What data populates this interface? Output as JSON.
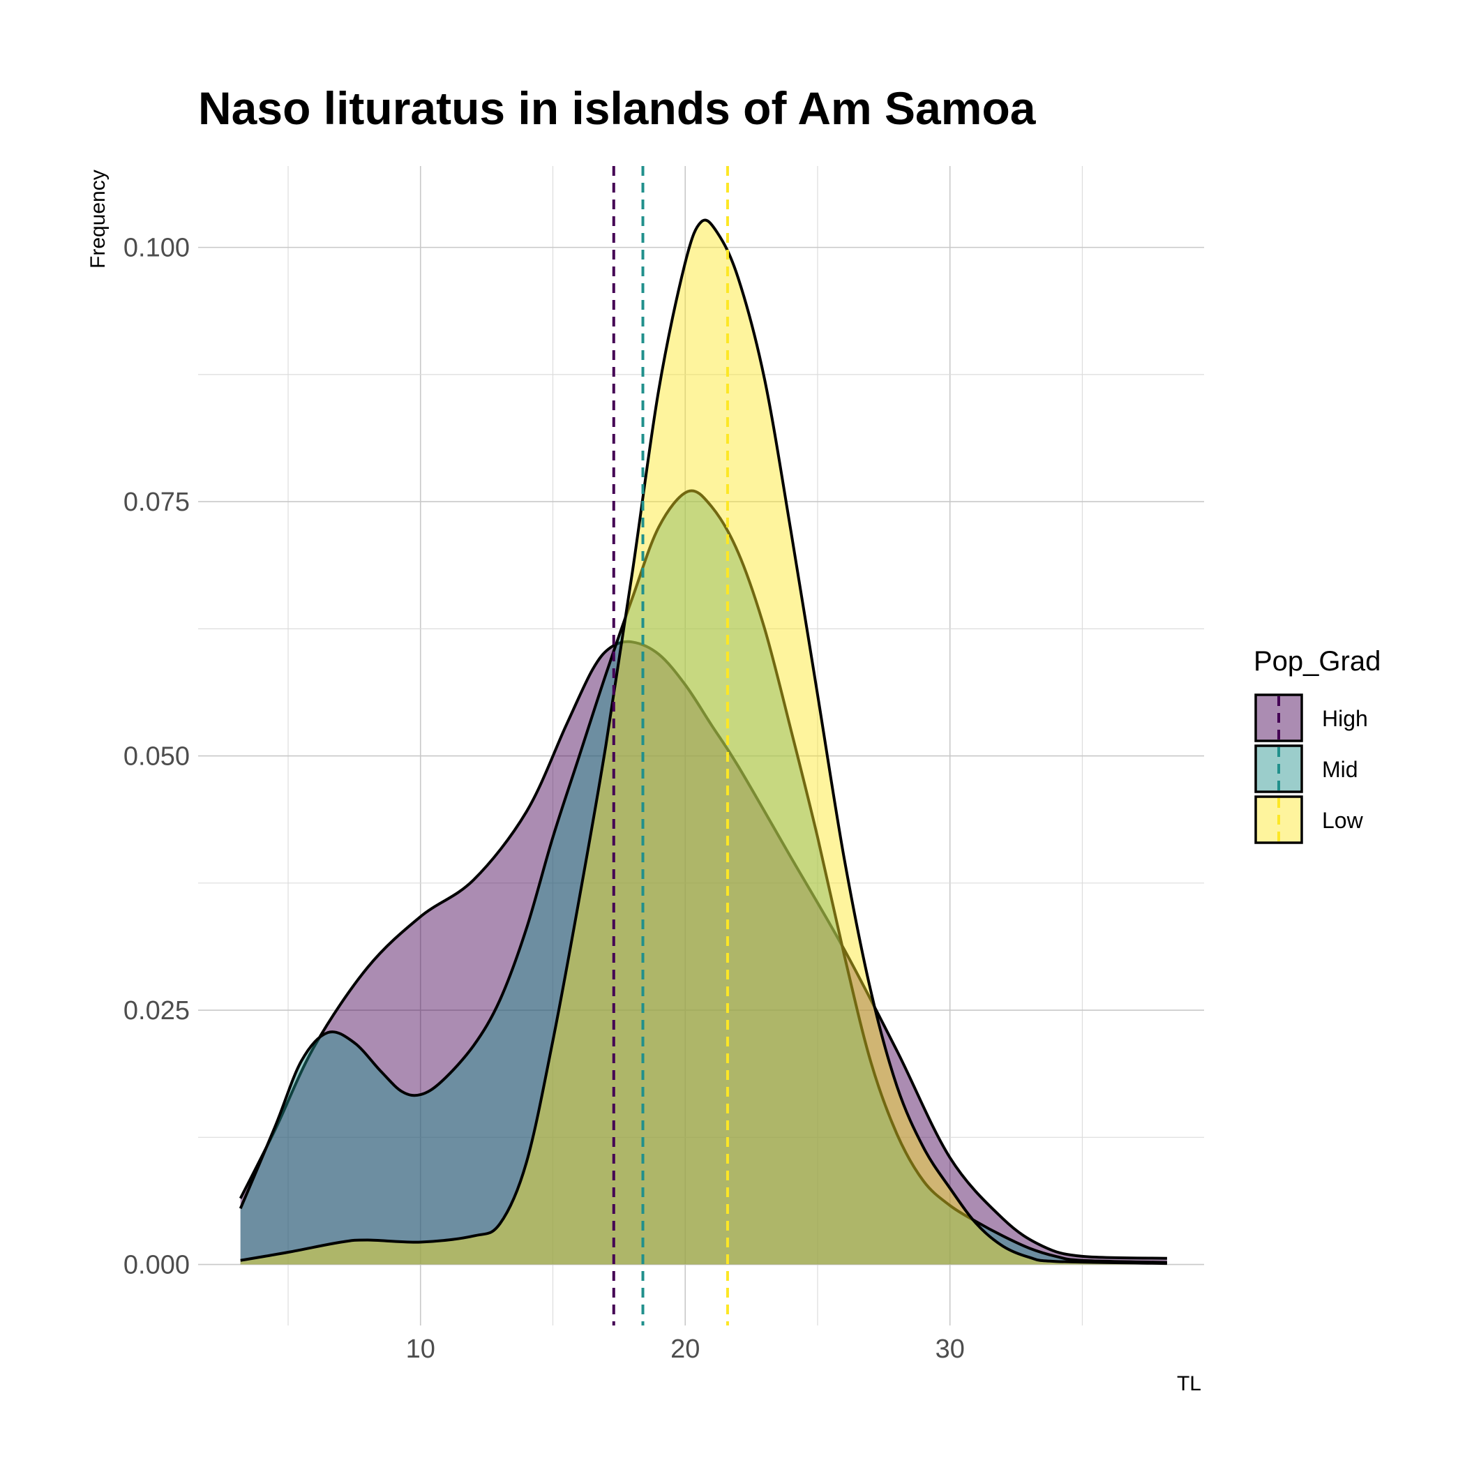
{
  "chart_data": {
    "type": "area",
    "title": "Naso lituratus in islands of Am Samoa",
    "xlabel": "TL",
    "ylabel": "Frequency",
    "xlim": [
      1.6,
      39.6
    ],
    "ylim": [
      -0.006,
      0.108
    ],
    "x_ticks": [
      10,
      20,
      30
    ],
    "x_tick_labels": [
      "10",
      "20",
      "30"
    ],
    "y_ticks": [
      0,
      0.025,
      0.05,
      0.075,
      0.1
    ],
    "y_tick_labels": [
      "0.000",
      "0.025",
      "0.050",
      "0.075",
      "0.100"
    ],
    "grid": true,
    "legend": {
      "title": "Pop_Grad",
      "position": "right",
      "entries": [
        "High",
        "Mid",
        "Low"
      ]
    },
    "series": [
      {
        "name": "High",
        "color": "#440154",
        "mean_line": 17.3,
        "points": [
          [
            3.2,
            0.0065
          ],
          [
            4.5,
            0.0132
          ],
          [
            6,
            0.0215
          ],
          [
            8,
            0.0292
          ],
          [
            10,
            0.0342
          ],
          [
            12,
            0.0378
          ],
          [
            14,
            0.0445
          ],
          [
            15.5,
            0.053
          ],
          [
            16.5,
            0.0585
          ],
          [
            17.2,
            0.0607
          ],
          [
            18,
            0.0612
          ],
          [
            19,
            0.06
          ],
          [
            20,
            0.057
          ],
          [
            21,
            0.053
          ],
          [
            22,
            0.049
          ],
          [
            24,
            0.04
          ],
          [
            26,
            0.031
          ],
          [
            28,
            0.021
          ],
          [
            30,
            0.0105
          ],
          [
            32,
            0.0045
          ],
          [
            33.5,
            0.0018
          ],
          [
            35,
            0.0008
          ],
          [
            38.2,
            0.0006
          ]
        ]
      },
      {
        "name": "Mid",
        "color": "#21908C",
        "mean_line": 18.4,
        "points": [
          [
            3.2,
            0.0055
          ],
          [
            4.5,
            0.0135
          ],
          [
            5.5,
            0.02
          ],
          [
            6.5,
            0.0228
          ],
          [
            7.5,
            0.0218
          ],
          [
            8.5,
            0.019
          ],
          [
            9.3,
            0.017
          ],
          [
            10,
            0.0167
          ],
          [
            10.8,
            0.018
          ],
          [
            12,
            0.0215
          ],
          [
            13,
            0.026
          ],
          [
            14,
            0.033
          ],
          [
            15,
            0.042
          ],
          [
            16,
            0.05
          ],
          [
            17,
            0.058
          ],
          [
            18,
            0.0655
          ],
          [
            19,
            0.0725
          ],
          [
            20.1,
            0.076
          ],
          [
            21,
            0.0745
          ],
          [
            22,
            0.07
          ],
          [
            23,
            0.0625
          ],
          [
            24,
            0.0525
          ],
          [
            25,
            0.042
          ],
          [
            26,
            0.0305
          ],
          [
            27,
            0.02
          ],
          [
            28,
            0.0128
          ],
          [
            29,
            0.0082
          ],
          [
            30,
            0.0058
          ],
          [
            31,
            0.0042
          ],
          [
            32,
            0.0028
          ],
          [
            33,
            0.0016
          ],
          [
            34,
            0.0008
          ],
          [
            35,
            0.0004
          ],
          [
            38.2,
            0.0002
          ]
        ]
      },
      {
        "name": "Low",
        "color": "#FDE725",
        "mean_line": 21.6,
        "points": [
          [
            3.2,
            0.0004
          ],
          [
            5,
            0.0012
          ],
          [
            7,
            0.0022
          ],
          [
            8,
            0.0024
          ],
          [
            10,
            0.0022
          ],
          [
            12,
            0.0028
          ],
          [
            13,
            0.004
          ],
          [
            14,
            0.01
          ],
          [
            15,
            0.022
          ],
          [
            16,
            0.036
          ],
          [
            17,
            0.051
          ],
          [
            18,
            0.068
          ],
          [
            19,
            0.086
          ],
          [
            20,
            0.0985
          ],
          [
            20.6,
            0.1025
          ],
          [
            21.2,
            0.1015
          ],
          [
            22,
            0.097
          ],
          [
            23,
            0.087
          ],
          [
            24,
            0.072
          ],
          [
            25,
            0.056
          ],
          [
            26,
            0.04
          ],
          [
            27,
            0.027
          ],
          [
            28,
            0.0175
          ],
          [
            29,
            0.0115
          ],
          [
            30,
            0.0075
          ],
          [
            31,
            0.004
          ],
          [
            32,
            0.0018
          ],
          [
            33,
            0.0007
          ],
          [
            34,
            0.0003
          ],
          [
            38.2,
            0.0001
          ]
        ]
      }
    ]
  }
}
